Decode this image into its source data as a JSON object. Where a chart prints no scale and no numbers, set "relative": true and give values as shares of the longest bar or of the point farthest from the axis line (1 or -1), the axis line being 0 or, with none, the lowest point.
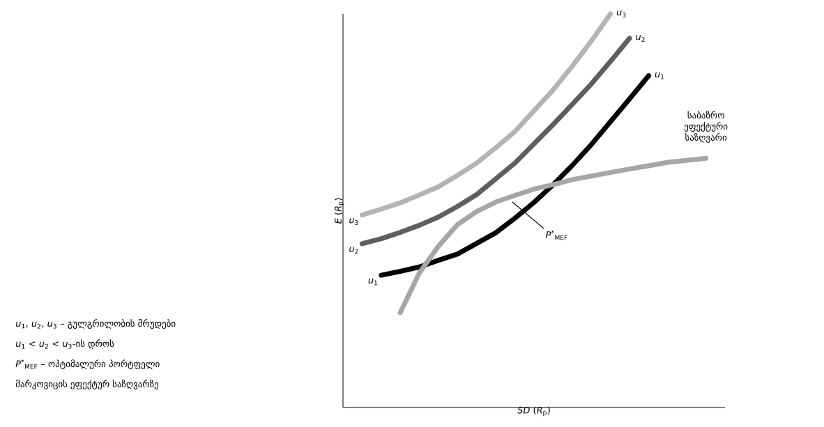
{
  "chart_data": {
    "type": "line",
    "relative": true,
    "xlabel": "*SD* (*R*$_{p}$)",
    "ylabel": "*E* (*R*$_{p}$)",
    "categories": [
      null,
      null,
      null,
      null,
      null,
      null,
      null,
      null,
      null,
      null,
      null,
      null,
      null,
      null,
      null,
      null,
      null,
      null,
      null,
      null,
      null
    ],
    "series": [
      {
        "name": "*u*$_{3}$",
        "color": "#b4b4b4",
        "values": [
          null,
          0.489,
          0.504,
          0.52,
          0.54,
          0.561,
          0.59,
          0.621,
          0.66,
          0.701,
          0.754,
          0.807,
          0.867,
          0.931,
          1.0,
          null,
          null,
          null,
          null,
          null,
          null
        ]
      },
      {
        "name": "*u*$_{2}$",
        "color": "#5e5e5e",
        "values": [
          null,
          0.416,
          0.429,
          0.445,
          0.463,
          0.484,
          0.511,
          0.541,
          0.581,
          0.621,
          0.67,
          0.719,
          0.77,
          0.822,
          0.879,
          0.938,
          null,
          null,
          null,
          null,
          null
        ]
      },
      {
        "name": "*u*$_{1}$",
        "color": "#000000",
        "values": [
          null,
          null,
          0.336,
          0.346,
          0.357,
          0.374,
          0.39,
          0.417,
          0.444,
          0.481,
          0.521,
          0.566,
          0.615,
          0.668,
          0.726,
          0.784,
          0.843,
          null,
          null,
          null,
          null
        ]
      },
      {
        "name": "საბაზრო ეფექტური საზღვარი",
        "color": "#a6a6a6",
        "values": [
          null,
          null,
          null,
          0.241,
          0.342,
          0.41,
          0.465,
          0.498,
          0.522,
          0.539,
          0.555,
          0.566,
          0.579,
          0.588,
          0.597,
          0.606,
          0.614,
          0.623,
          0.628,
          0.633,
          null
        ]
      }
    ],
    "annotations": [
      "*P*$^{*}$$_{MEF}$",
      "*u*$_{1}$, *u*$_{2}$, *u*$_{3}$ – გულგრილობის მრუდები",
      "*u*$_{1}$ < *u*$_{2}$ < *u*$_{3}$-ის დროს",
      "*P*$^{*}$$_{MEF}$ – ოპტიმალური პორტფელი",
      "მარკოვიცის ეფექტურ საზღვარზე"
    ]
  }
}
